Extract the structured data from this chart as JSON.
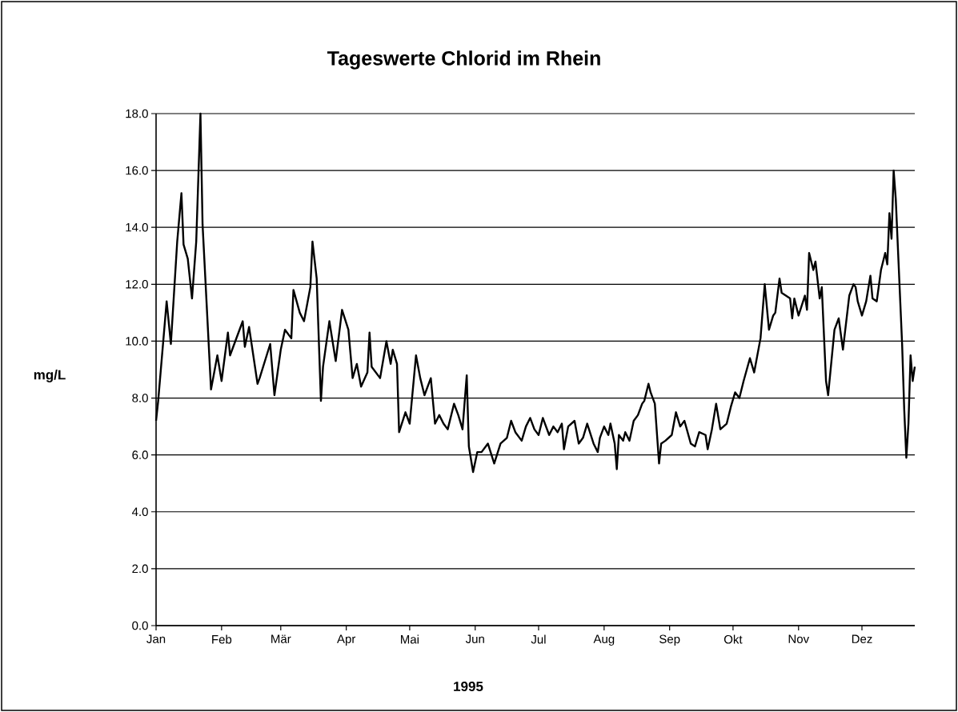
{
  "chart_data": {
    "type": "line",
    "title": "Tageswerte Chlorid im Rhein",
    "xlabel": "1995",
    "ylabel": "mg/L",
    "color": "#000000",
    "grid": "y",
    "xlim": [
      "1995-01-01",
      "1995-12-26"
    ],
    "ylim": [
      0,
      18
    ],
    "xticks": [
      {
        "value": "1995-01-01",
        "label": "Jan"
      },
      {
        "value": "1995-02-01",
        "label": "Feb"
      },
      {
        "value": "1995-03-01",
        "label": "Mär"
      },
      {
        "value": "1995-04-01",
        "label": "Apr"
      },
      {
        "value": "1995-05-01",
        "label": "Mai"
      },
      {
        "value": "1995-06-01",
        "label": "Jun"
      },
      {
        "value": "1995-07-01",
        "label": "Jul"
      },
      {
        "value": "1995-08-01",
        "label": "Aug"
      },
      {
        "value": "1995-09-01",
        "label": "Sep"
      },
      {
        "value": "1995-10-01",
        "label": "Okt"
      },
      {
        "value": "1995-11-01",
        "label": "Nov"
      },
      {
        "value": "1995-12-01",
        "label": "Dez"
      }
    ],
    "yticks": [
      {
        "value": 0,
        "label": "0.0"
      },
      {
        "value": 2,
        "label": "2.0"
      },
      {
        "value": 4,
        "label": "4.0"
      },
      {
        "value": 6,
        "label": "6.0"
      },
      {
        "value": 8,
        "label": "8.0"
      },
      {
        "value": 10,
        "label": "10.0"
      },
      {
        "value": 12,
        "label": "12.0"
      },
      {
        "value": 14,
        "label": "14.0"
      },
      {
        "value": 16,
        "label": "16.0"
      },
      {
        "value": 18,
        "label": "18.0"
      }
    ],
    "x": [
      "1995-01-01",
      "1995-01-02",
      "1995-01-06",
      "1995-01-08",
      "1995-01-11",
      "1995-01-13",
      "1995-01-14",
      "1995-01-16",
      "1995-01-18",
      "1995-01-20",
      "1995-01-22",
      "1995-01-23",
      "1995-01-27",
      "1995-01-30",
      "1995-02-01",
      "1995-02-04",
      "1995-02-05",
      "1995-02-11",
      "1995-02-12",
      "1995-02-14",
      "1995-02-18",
      "1995-02-19",
      "1995-02-24",
      "1995-02-26",
      "1995-03-01",
      "1995-03-03",
      "1995-03-06",
      "1995-03-07",
      "1995-03-10",
      "1995-03-12",
      "1995-03-15",
      "1995-03-16",
      "1995-03-18",
      "1995-03-20",
      "1995-03-21",
      "1995-03-24",
      "1995-03-27",
      "1995-03-30",
      "1995-04-02",
      "1995-04-04",
      "1995-04-06",
      "1995-04-08",
      "1995-04-11",
      "1995-04-12",
      "1995-04-13",
      "1995-04-17",
      "1995-04-20",
      "1995-04-22",
      "1995-04-23",
      "1995-04-25",
      "1995-04-26",
      "1995-04-29",
      "1995-05-01",
      "1995-05-04",
      "1995-05-06",
      "1995-05-08",
      "1995-05-11",
      "1995-05-13",
      "1995-05-15",
      "1995-05-17",
      "1995-05-19",
      "1995-05-22",
      "1995-05-24",
      "1995-05-26",
      "1995-05-28",
      "1995-05-29",
      "1995-05-31",
      "1995-06-02",
      "1995-06-04",
      "1995-06-07",
      "1995-06-10",
      "1995-06-13",
      "1995-06-16",
      "1995-06-18",
      "1995-06-20",
      "1995-06-23",
      "1995-06-25",
      "1995-06-27",
      "1995-06-29",
      "1995-07-01",
      "1995-07-03",
      "1995-07-06",
      "1995-07-08",
      "1995-07-10",
      "1995-07-12",
      "1995-07-13",
      "1995-07-15",
      "1995-07-18",
      "1995-07-20",
      "1995-07-22",
      "1995-07-24",
      "1995-07-27",
      "1995-07-29",
      "1995-07-30",
      "1995-08-01",
      "1995-08-03",
      "1995-08-04",
      "1995-08-06",
      "1995-08-07",
      "1995-08-08",
      "1995-08-10",
      "1995-08-11",
      "1995-08-13",
      "1995-08-15",
      "1995-08-17",
      "1995-08-19",
      "1995-08-20",
      "1995-08-22",
      "1995-08-23",
      "1995-08-25",
      "1995-08-27",
      "1995-08-28",
      "1995-08-30",
      "1995-09-02",
      "1995-09-04",
      "1995-09-06",
      "1995-09-08",
      "1995-09-11",
      "1995-09-13",
      "1995-09-15",
      "1995-09-18",
      "1995-09-19",
      "1995-09-21",
      "1995-09-23",
      "1995-09-25",
      "1995-09-28",
      "1995-09-30",
      "1995-10-02",
      "1995-10-04",
      "1995-10-06",
      "1995-10-09",
      "1995-10-11",
      "1995-10-14",
      "1995-10-16",
      "1995-10-18",
      "1995-10-20",
      "1995-10-21",
      "1995-10-23",
      "1995-10-24",
      "1995-10-28",
      "1995-10-29",
      "1995-10-30",
      "1995-11-01",
      "1995-11-04",
      "1995-11-05",
      "1995-11-06",
      "1995-11-08",
      "1995-11-09",
      "1995-11-11",
      "1995-11-12",
      "1995-11-14",
      "1995-11-15",
      "1995-11-18",
      "1995-11-20",
      "1995-11-22",
      "1995-11-25",
      "1995-11-27",
      "1995-11-28",
      "1995-11-29",
      "1995-12-01",
      "1995-12-03",
      "1995-12-05",
      "1995-12-06",
      "1995-12-08",
      "1995-12-10",
      "1995-12-12",
      "1995-12-13",
      "1995-12-14",
      "1995-12-15",
      "1995-12-16",
      "1995-12-17",
      "1995-12-20",
      "1995-12-21",
      "1995-12-22",
      "1995-12-23",
      "1995-12-24",
      "1995-12-25",
      "1995-12-26"
    ],
    "values": [
      7.2,
      7.9,
      11.4,
      9.9,
      13.5,
      15.2,
      13.4,
      12.9,
      11.5,
      13.5,
      18.0,
      14.1,
      8.3,
      9.5,
      8.6,
      10.3,
      9.5,
      10.7,
      9.8,
      10.5,
      8.5,
      8.7,
      9.9,
      8.1,
      9.7,
      10.4,
      10.1,
      11.8,
      11.0,
      10.7,
      11.9,
      13.5,
      12.2,
      7.9,
      9.1,
      10.7,
      9.3,
      11.1,
      10.4,
      8.7,
      9.2,
      8.4,
      8.9,
      10.3,
      9.1,
      8.7,
      10.0,
      9.2,
      9.7,
      9.2,
      6.8,
      7.5,
      7.1,
      9.5,
      8.7,
      8.1,
      8.7,
      7.1,
      7.4,
      7.1,
      6.9,
      7.8,
      7.4,
      6.9,
      8.8,
      6.3,
      5.4,
      6.1,
      6.1,
      6.4,
      5.7,
      6.4,
      6.6,
      7.2,
      6.8,
      6.5,
      7.0,
      7.3,
      6.9,
      6.7,
      7.3,
      6.7,
      7.0,
      6.8,
      7.1,
      6.2,
      7.0,
      7.2,
      6.4,
      6.6,
      7.1,
      6.4,
      6.1,
      6.6,
      7.0,
      6.7,
      7.1,
      6.4,
      5.5,
      6.7,
      6.5,
      6.8,
      6.5,
      7.2,
      7.4,
      7.8,
      7.9,
      8.5,
      8.2,
      7.8,
      5.7,
      6.4,
      6.5,
      6.7,
      7.5,
      7.0,
      7.2,
      6.4,
      6.3,
      6.8,
      6.7,
      6.2,
      6.9,
      7.8,
      6.9,
      7.1,
      7.7,
      8.2,
      8.0,
      8.6,
      9.4,
      8.9,
      10.1,
      12.0,
      10.4,
      10.9,
      11.0,
      12.2,
      11.7,
      11.5,
      10.8,
      11.5,
      10.9,
      11.6,
      11.1,
      13.1,
      12.5,
      12.8,
      11.5,
      11.9,
      8.6,
      8.1,
      10.4,
      10.8,
      9.7,
      11.6,
      12.0,
      11.9,
      11.4,
      10.9,
      11.4,
      12.3,
      11.5,
      11.4,
      12.5,
      13.1,
      12.7,
      14.5,
      13.6,
      16.0,
      15.0,
      9.9,
      7.6,
      5.9,
      7.1,
      9.5,
      8.6,
      9.1
    ]
  }
}
